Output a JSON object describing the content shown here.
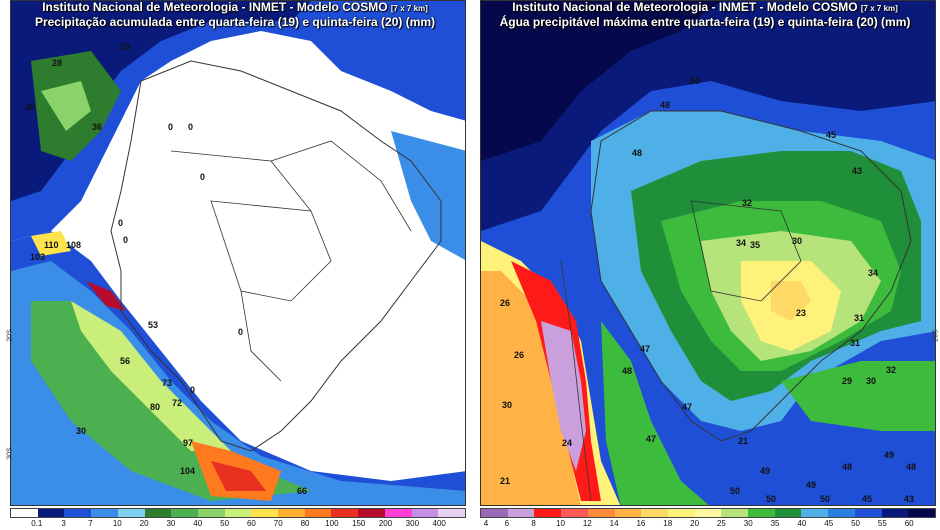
{
  "left_panel": {
    "title_line1": "Instituto Nacional de Meteorologia - INMET - Modelo COSMO",
    "title_res": "[7 x 7 km]",
    "title_line2": "Precipitação acumulada entre quarta-feira (19) e quinta-feira (20) (mm)",
    "scale_labels": [
      "0.1",
      "3",
      "7",
      "10",
      "20",
      "30",
      "40",
      "50",
      "60",
      "70",
      "80",
      "100",
      "150",
      "200",
      "300",
      "400"
    ],
    "scale_colors": [
      "#ffffff",
      "#0a1a7a",
      "#1f4fd6",
      "#3a8ee8",
      "#7fd0f0",
      "#2e7d2e",
      "#4caf50",
      "#8ad26a",
      "#c9ee7a",
      "#ffe34d",
      "#ffb030",
      "#ff7a1f",
      "#e83020",
      "#b80c2c",
      "#ff3fd6",
      "#c68fe6",
      "#e7d0f2"
    ],
    "value_labels": [
      "28",
      "20",
      "36",
      "36",
      "0",
      "0",
      "0",
      "0",
      "0",
      "0",
      "0",
      "110",
      "108",
      "103",
      "53",
      "56",
      "73",
      "72",
      "80",
      "97",
      "104",
      "66",
      "30"
    ]
  },
  "right_panel": {
    "title_line1": "Instituto Nacional de Meteorologia - INMET - Modelo COSMO",
    "title_res": "[7 x 7 km]",
    "title_line2": "Água precipitável máxima entre quarta-feira (19) e quinta-feira (20) (mm)",
    "scale_labels": [
      "4",
      "6",
      "8",
      "10",
      "12",
      "14",
      "16",
      "18",
      "20",
      "25",
      "30",
      "35",
      "40",
      "45",
      "50",
      "55",
      "60"
    ],
    "scale_colors": [
      "#9a6ab8",
      "#c9a0dc",
      "#ff1a1a",
      "#ff5a5a",
      "#ff8a3a",
      "#ffb347",
      "#ffd966",
      "#fff27a",
      "#fff8a0",
      "#b6e37a",
      "#3dbb3d",
      "#1f8f3a",
      "#4fb0e8",
      "#2a7fe0",
      "#1f4fd6",
      "#0a1a7a",
      "#05084a"
    ],
    "value_labels": [
      "50",
      "48",
      "48",
      "45",
      "32",
      "43",
      "34",
      "35",
      "30",
      "34",
      "23",
      "31",
      "31",
      "32",
      "29",
      "30",
      "47",
      "48",
      "26",
      "26",
      "30",
      "47",
      "24",
      "21",
      "21",
      "47",
      "49",
      "50",
      "50",
      "48",
      "48",
      "49",
      "49",
      "50",
      "45",
      "43"
    ]
  },
  "axis": {
    "lat_label": "20S",
    "lat_label2": "30S"
  }
}
